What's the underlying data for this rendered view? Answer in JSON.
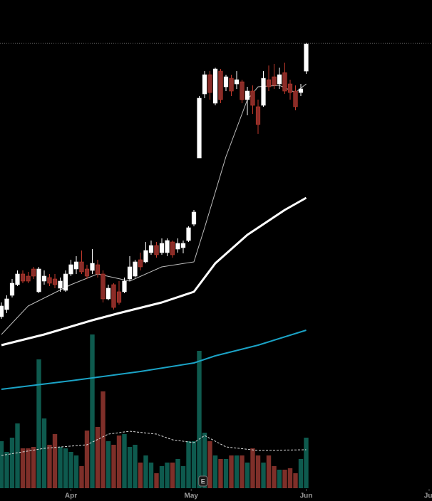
{
  "chart_data": {
    "type": "candlestick",
    "xlim": [
      -0.267,
      80.533
    ],
    "xticks": [
      {
        "value": 13,
        "label": "Apr"
      },
      {
        "value": 35.5,
        "label": "May"
      },
      {
        "value": 57,
        "label": "Jun"
      },
      {
        "value": 80,
        "label": "Jul"
      }
    ],
    "ylim": [
      0,
      700
    ],
    "up_color": "#ffffff",
    "down_color": "#8b2c28",
    "reference_line": {
      "value": 639,
      "color": "#777777"
    },
    "ohlc": [
      [
        255,
        275,
        252,
        270
      ],
      [
        265,
        285,
        260,
        280
      ],
      [
        285,
        308,
        282,
        302
      ],
      [
        300,
        320,
        298,
        315
      ],
      [
        315,
        320,
        302,
        305
      ],
      [
        312,
        318,
        302,
        305
      ],
      [
        322,
        325,
        308,
        312
      ],
      [
        290,
        325,
        288,
        322
      ],
      [
        305,
        320,
        300,
        312
      ],
      [
        310,
        315,
        298,
        302
      ],
      [
        308,
        315,
        295,
        300
      ],
      [
        295,
        310,
        290,
        305
      ],
      [
        292,
        320,
        290,
        315
      ],
      [
        315,
        335,
        312,
        328
      ],
      [
        322,
        340,
        315,
        332
      ],
      [
        332,
        348,
        315,
        318
      ],
      [
        322,
        328,
        308,
        312
      ],
      [
        320,
        350,
        315,
        330
      ],
      [
        328,
        335,
        310,
        315
      ],
      [
        315,
        320,
        275,
        280
      ],
      [
        280,
        300,
        278,
        295
      ],
      [
        300,
        302,
        265,
        268
      ],
      [
        290,
        305,
        272,
        275
      ],
      [
        290,
        310,
        288,
        305
      ],
      [
        308,
        340,
        305,
        325
      ],
      [
        312,
        335,
        310,
        332
      ],
      [
        335,
        345,
        320,
        325
      ],
      [
        332,
        360,
        330,
        348
      ],
      [
        345,
        362,
        342,
        355
      ],
      [
        355,
        360,
        338,
        342
      ],
      [
        345,
        365,
        342,
        358
      ],
      [
        345,
        365,
        340,
        362
      ],
      [
        360,
        362,
        338,
        342
      ],
      [
        350,
        365,
        345,
        358
      ],
      [
        352,
        362,
        344,
        358
      ],
      [
        362,
        382,
        360,
        380
      ],
      [
        385,
        405,
        382,
        402
      ],
      [
        478,
        565,
        478,
        562
      ],
      [
        568,
        600,
        562,
        595
      ],
      [
        595,
        600,
        560,
        570
      ],
      [
        555,
        605,
        552,
        603
      ],
      [
        600,
        603,
        555,
        560
      ],
      [
        578,
        595,
        572,
        592
      ],
      [
        590,
        595,
        565,
        572
      ],
      [
        582,
        600,
        575,
        588
      ],
      [
        585,
        588,
        555,
        560
      ],
      [
        560,
        578,
        538,
        572
      ],
      [
        572,
        580,
        540,
        552
      ],
      [
        550,
        560,
        512,
        525
      ],
      [
        552,
        600,
        550,
        590
      ],
      [
        588,
        608,
        572,
        578
      ],
      [
        592,
        610,
        575,
        580
      ],
      [
        582,
        605,
        575,
        595
      ],
      [
        598,
        612,
        568,
        572
      ],
      [
        582,
        588,
        560,
        570
      ],
      [
        572,
        580,
        545,
        550
      ],
      [
        570,
        582,
        565,
        575
      ],
      [
        600,
        640,
        596,
        638
      ]
    ],
    "lines": [
      {
        "color": "#bdbdbd",
        "width": 1,
        "x": [
          0,
          5,
          13,
          18,
          24,
          30,
          36,
          38,
          42,
          46,
          48,
          52,
          55,
          57
        ],
        "values": [
          230,
          270,
          300,
          315,
          305,
          325,
          332,
          380,
          480,
          560,
          578,
          580,
          570,
          582
        ]
      },
      {
        "color": "#ffffff",
        "width": 3,
        "x": [
          0,
          8,
          17,
          22,
          30,
          36,
          40,
          46,
          53,
          57
        ],
        "values": [
          215,
          230,
          250,
          260,
          275,
          290,
          330,
          370,
          405,
          422
        ]
      },
      {
        "color": "#1ba3c6",
        "width": 2,
        "x": [
          0,
          13,
          26,
          36,
          40,
          48,
          57
        ],
        "values": [
          153,
          165,
          178,
          190,
          200,
          215,
          236
        ]
      }
    ],
    "volume": {
      "ylim": [
        0,
        230
      ],
      "up_color": "#0e5a4e",
      "down_color": "#7e2f29",
      "values": [
        66,
        51,
        71,
        91,
        56,
        56,
        58,
        181,
        98,
        61,
        76,
        58,
        56,
        51,
        46,
        31,
        81,
        216,
        86,
        136,
        66,
        61,
        74,
        76,
        58,
        61,
        36,
        46,
        36,
        21,
        31,
        36,
        36,
        41,
        31,
        66,
        66,
        193,
        78,
        66,
        46,
        41,
        41,
        46,
        46,
        46,
        36,
        56,
        46,
        36,
        46,
        31,
        26,
        26,
        28,
        21,
        41,
        71
      ],
      "average": {
        "color": "#dddddd",
        "x": [
          0,
          8,
          16,
          20,
          24,
          29,
          32,
          36,
          38,
          42,
          48,
          57
        ],
        "values": [
          46,
          56,
          61,
          76,
          80,
          76,
          68,
          64,
          74,
          58,
          53,
          54
        ]
      }
    },
    "events": [
      {
        "x": 37.7,
        "label": "E"
      }
    ]
  }
}
